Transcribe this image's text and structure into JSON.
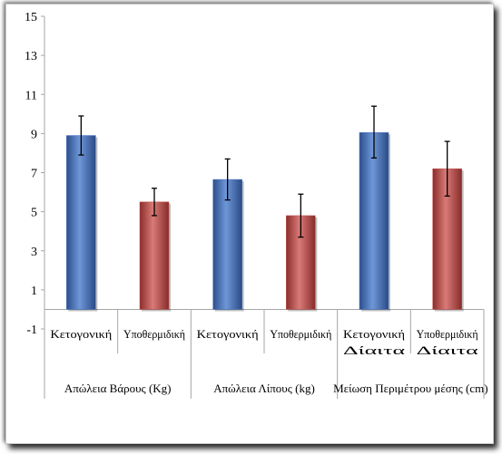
{
  "chart_data": {
    "type": "bar",
    "title": "",
    "xlabel": "",
    "ylabel": "",
    "ylim": [
      -1,
      15
    ],
    "yticks": [
      "-1",
      "1",
      "3",
      "5",
      "7",
      "9",
      "11",
      "13",
      "15"
    ],
    "grid": false,
    "legend": "none",
    "colors": {
      "ketogenic": "#4472c4",
      "hypothermic": "#c0504d"
    },
    "categories": [
      {
        "label_lines": [
          "Κετογονική"
        ],
        "group": 0,
        "value": 8.9,
        "err_low": 7.9,
        "err_high": 9.9,
        "color_key": "ketogenic"
      },
      {
        "label_lines": [
          "Υποθερμιδική"
        ],
        "group": 0,
        "value": 5.5,
        "err_low": 4.8,
        "err_high": 6.2,
        "color_key": "hypothermic"
      },
      {
        "label_lines": [
          "Κετογονική"
        ],
        "group": 1,
        "value": 6.65,
        "err_low": 5.6,
        "err_high": 7.7,
        "color_key": "ketogenic"
      },
      {
        "label_lines": [
          "Υποθερμιδική"
        ],
        "group": 1,
        "value": 4.8,
        "err_low": 3.7,
        "err_high": 5.9,
        "color_key": "hypothermic"
      },
      {
        "label_lines": [
          "Κετογονική",
          "Δίαιτα"
        ],
        "group": 2,
        "value": 9.05,
        "err_low": 7.75,
        "err_high": 10.4,
        "color_key": "ketogenic"
      },
      {
        "label_lines": [
          "Υποθερμιδική",
          "Δίαιτα"
        ],
        "group": 2,
        "value": 7.2,
        "err_low": 5.8,
        "err_high": 8.6,
        "color_key": "hypothermic"
      }
    ],
    "groups": [
      "Απώλεια Βάρους (Kg)",
      "Απώλεια Λίπους (kg)",
      "Μείωση Περιμέτρου μέσης (cm)"
    ]
  }
}
